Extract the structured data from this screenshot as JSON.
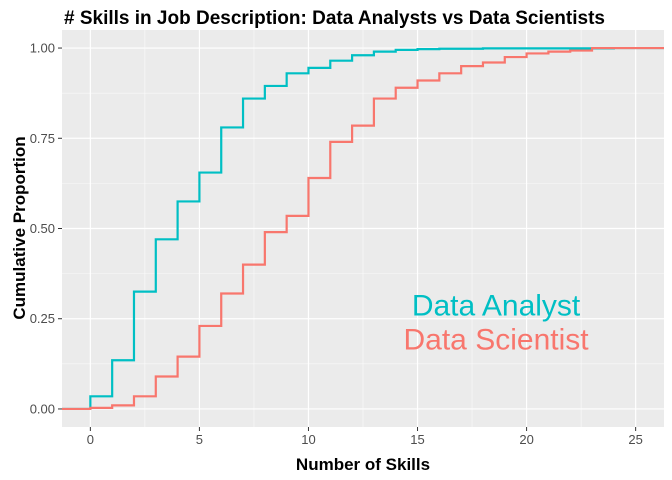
{
  "chart_data": {
    "type": "line",
    "step": true,
    "title": "# Skills in Job Description: Data Analysts vs Data Scientists",
    "xlabel": "Number of Skills",
    "ylabel": "Cumulative Proportion",
    "xlim": [
      -1.3,
      26.3
    ],
    "ylim": [
      -0.05,
      1.05
    ],
    "xticks": [
      0,
      5,
      10,
      15,
      20,
      25
    ],
    "xtick_labels": [
      "0",
      "5",
      "10",
      "15",
      "20",
      "25"
    ],
    "yticks": [
      0,
      0.25,
      0.5,
      0.75,
      1
    ],
    "ytick_labels": [
      "0.00",
      "0.25",
      "0.50",
      "0.75",
      "1.00"
    ],
    "grid": true,
    "legend": "none",
    "series": [
      {
        "name": "Data Analyst",
        "color": "#00BFC4",
        "x": [
          0,
          1,
          2,
          3,
          4,
          5,
          6,
          7,
          8,
          9,
          10,
          11,
          12,
          13,
          14,
          15,
          16,
          17,
          18,
          19,
          20,
          21,
          22,
          23,
          24,
          25
        ],
        "values": [
          0.035,
          0.135,
          0.325,
          0.47,
          0.575,
          0.655,
          0.78,
          0.86,
          0.895,
          0.93,
          0.945,
          0.965,
          0.98,
          0.99,
          0.995,
          0.997,
          0.998,
          0.998,
          0.999,
          0.999,
          0.999,
          0.999,
          0.999,
          0.999,
          1.0,
          1.0
        ],
        "label": "Data Analyst"
      },
      {
        "name": "Data Scientist",
        "color": "#F8766D",
        "x": [
          0,
          1,
          2,
          3,
          4,
          5,
          6,
          7,
          8,
          9,
          10,
          11,
          12,
          13,
          14,
          15,
          16,
          17,
          18,
          19,
          20,
          21,
          22,
          23
        ],
        "values": [
          0.003,
          0.01,
          0.035,
          0.09,
          0.145,
          0.23,
          0.32,
          0.4,
          0.49,
          0.535,
          0.64,
          0.74,
          0.785,
          0.86,
          0.89,
          0.91,
          0.93,
          0.95,
          0.96,
          0.975,
          0.985,
          0.99,
          0.993,
          1.0
        ],
        "label": "Data Scientist"
      }
    ]
  }
}
